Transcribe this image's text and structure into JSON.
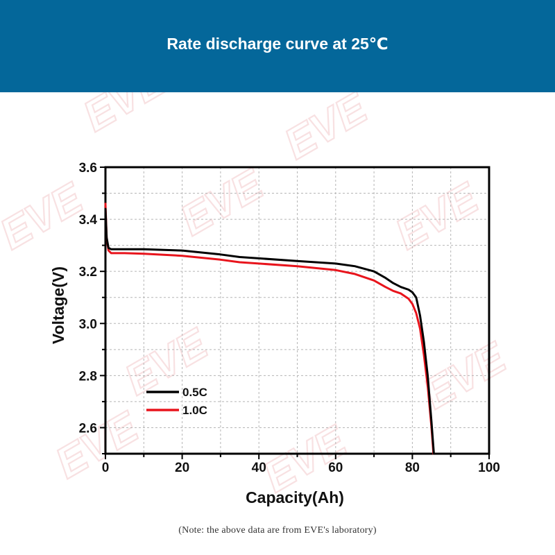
{
  "header": {
    "title": "Rate discharge curve at 25℃",
    "background": "#04679a"
  },
  "watermark_text": "EVE",
  "note": "(Note: the above data are from EVE's laboratory)",
  "chart_data": {
    "type": "line",
    "title": "Rate discharge curve at 25℃",
    "xlabel": "Capacity(Ah)",
    "ylabel": "Voltage(V)",
    "xlim": [
      0,
      100
    ],
    "ylim": [
      2.5,
      3.6
    ],
    "xticks": [
      "0",
      "20",
      "40",
      "60",
      "80",
      "100"
    ],
    "yticks": [
      "2.6",
      "2.8",
      "3.0",
      "3.2",
      "3.4",
      "3.6"
    ],
    "grid": true,
    "legend_position": "bottom-left",
    "series": [
      {
        "name": "0.5C",
        "color": "#000000",
        "x": [
          0,
          0.3,
          0.8,
          1.5,
          5,
          10,
          20,
          30,
          35,
          40,
          50,
          60,
          65,
          70,
          73,
          75,
          77,
          79,
          80,
          81,
          82,
          83,
          84,
          85,
          85.6
        ],
        "y": [
          3.44,
          3.33,
          3.29,
          3.285,
          3.285,
          3.285,
          3.28,
          3.265,
          3.255,
          3.25,
          3.24,
          3.23,
          3.22,
          3.2,
          3.175,
          3.155,
          3.14,
          3.13,
          3.12,
          3.1,
          3.03,
          2.93,
          2.8,
          2.62,
          2.5
        ]
      },
      {
        "name": "1.0C",
        "color": "#e8141c",
        "x": [
          0,
          0.3,
          0.8,
          1.5,
          5,
          10,
          20,
          30,
          35,
          40,
          50,
          60,
          65,
          70,
          73,
          75,
          77,
          79,
          80,
          81,
          82,
          83,
          84,
          85,
          85.5
        ],
        "y": [
          3.46,
          3.33,
          3.28,
          3.27,
          3.27,
          3.268,
          3.26,
          3.245,
          3.235,
          3.23,
          3.22,
          3.205,
          3.19,
          3.165,
          3.14,
          3.125,
          3.115,
          3.095,
          3.075,
          3.04,
          2.98,
          2.88,
          2.76,
          2.6,
          2.5
        ]
      }
    ]
  }
}
